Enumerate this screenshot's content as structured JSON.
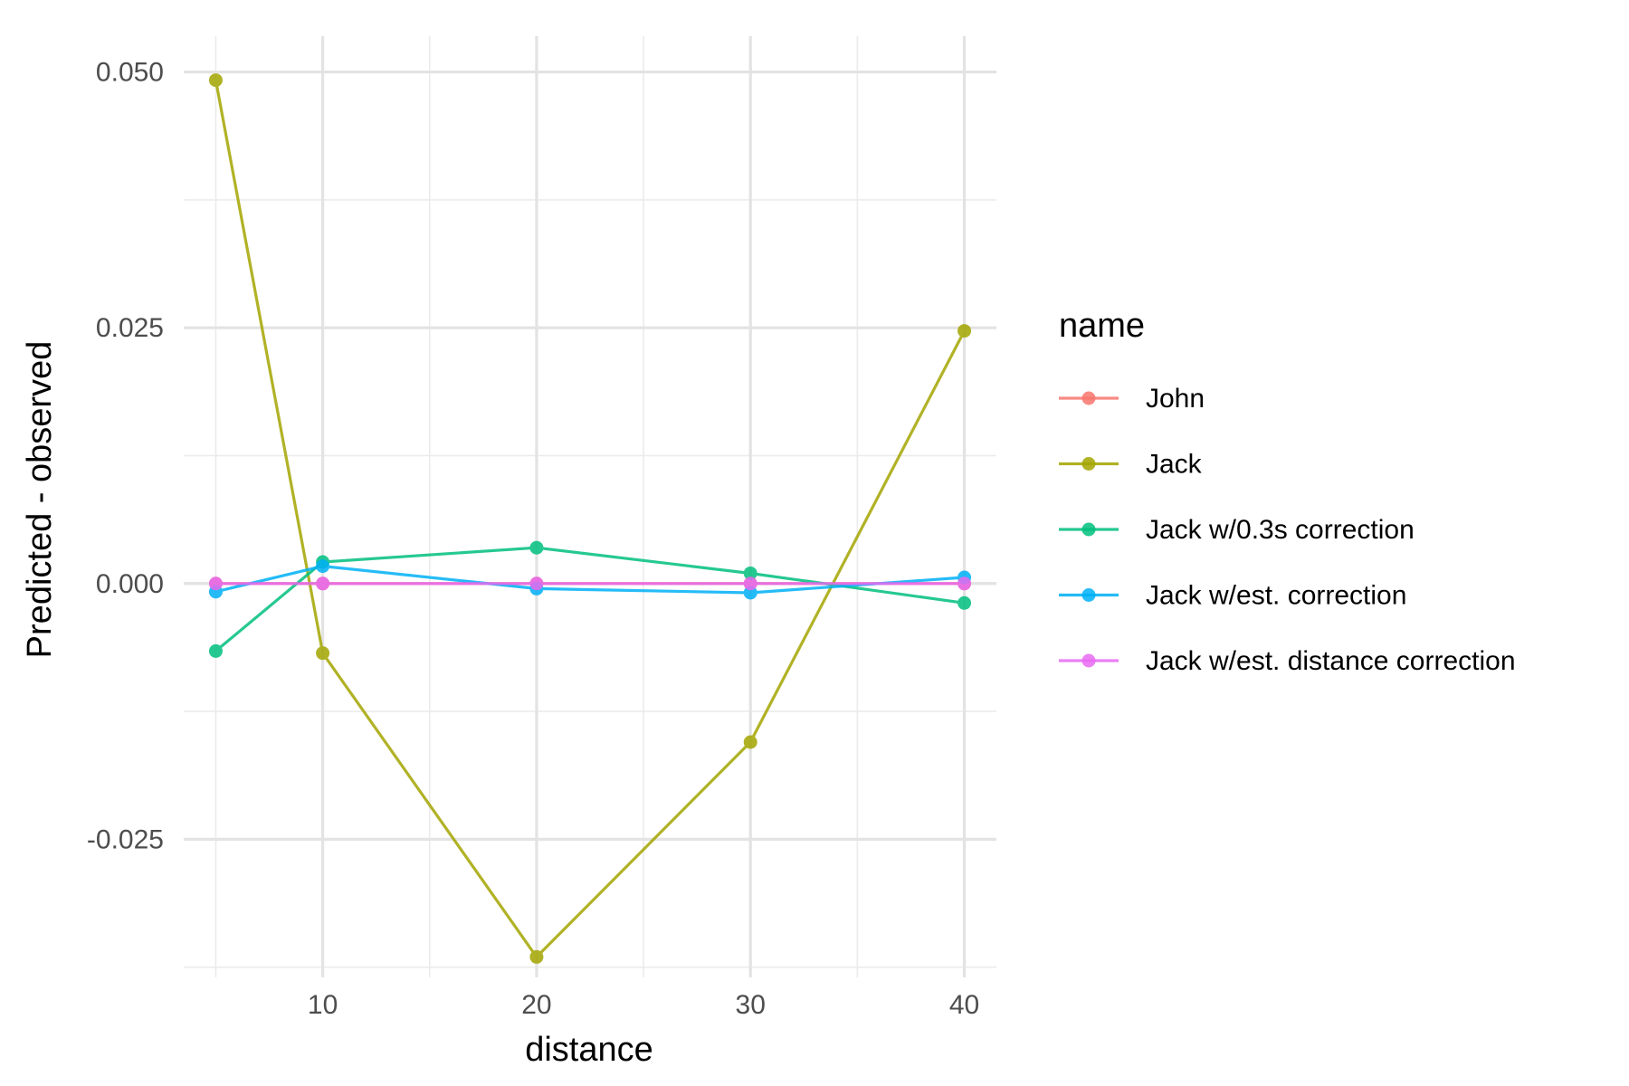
{
  "chart_data": {
    "type": "line",
    "xlabel": "distance",
    "ylabel": "Predicted - observed",
    "xlim": [
      3.5,
      41.5
    ],
    "ylim": [
      -0.0385,
      0.0535
    ],
    "x_ticks": [
      10,
      20,
      30,
      40
    ],
    "x_tick_labels": [
      "10",
      "20",
      "30",
      "40"
    ],
    "y_ticks": [
      -0.025,
      0.0,
      0.025,
      0.05
    ],
    "y_tick_labels": [
      "-0.025",
      "0.000",
      "0.025",
      "0.050"
    ],
    "x_minor": [
      5,
      15,
      25,
      35
    ],
    "y_minor": [
      -0.0375,
      -0.0125,
      0.0125,
      0.0375
    ],
    "grid": true,
    "legend": {
      "title": "name",
      "position": "right"
    },
    "x": [
      5,
      10,
      20,
      30,
      40
    ],
    "series": [
      {
        "name": "John",
        "color": "#F8766D",
        "values": [
          0.0,
          0.0,
          0.0,
          0.0,
          0.0
        ]
      },
      {
        "name": "Jack",
        "color": "#A3A500",
        "values": [
          0.0492,
          -0.0068,
          -0.0365,
          -0.0155,
          0.0247
        ]
      },
      {
        "name": "Jack w/0.3s correction",
        "color": "#00BF7D",
        "values": [
          -0.0066,
          0.0021,
          0.0035,
          0.001,
          -0.0019
        ]
      },
      {
        "name": "Jack w/est. correction",
        "color": "#00B0F6",
        "values": [
          -0.0008,
          0.0017,
          -0.0005,
          -0.0009,
          0.0006
        ]
      },
      {
        "name": "Jack w/est. distance correction",
        "color": "#E76BF3",
        "values": [
          0.0,
          0.0,
          0.0,
          0.0,
          0.0
        ]
      }
    ]
  }
}
